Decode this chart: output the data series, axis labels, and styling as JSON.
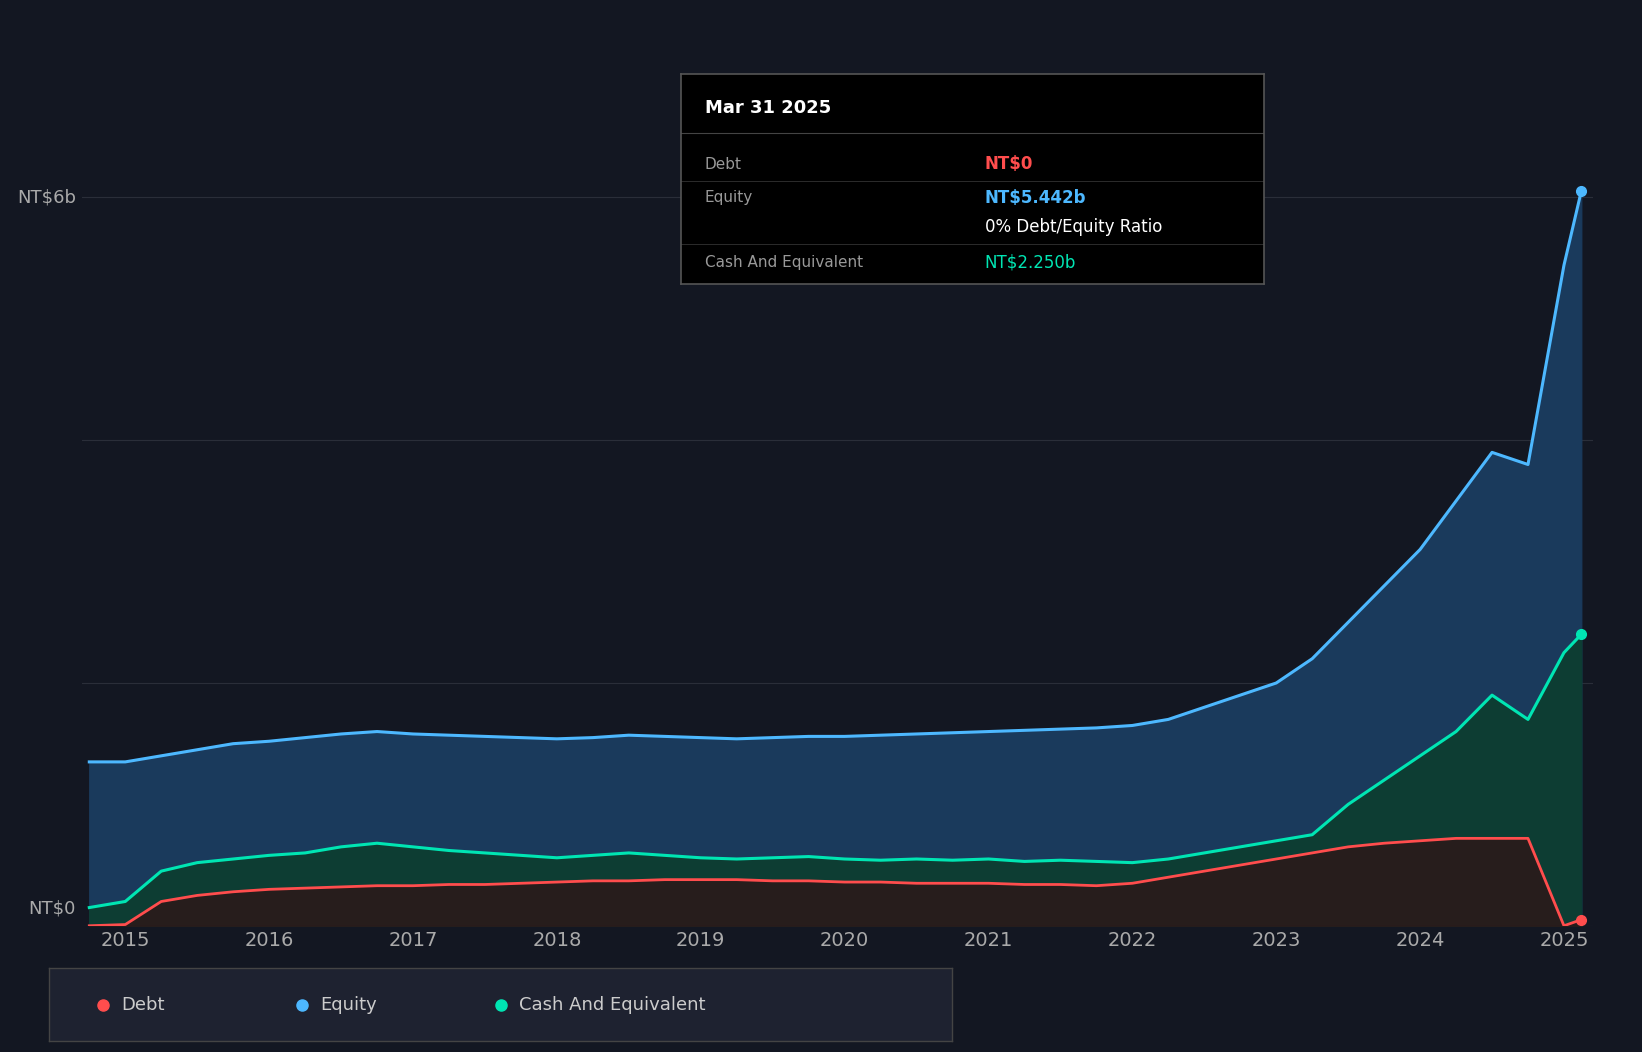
{
  "bg_color": "#131722",
  "plot_bg_color": "#131722",
  "grid_color": "#2a2e39",
  "title_box": {
    "title": "Mar 31 2025",
    "rows": [
      {
        "label": "Debt",
        "value": "NT$0",
        "value_color": "#ff4d4d"
      },
      {
        "label": "Equity",
        "value": "NT$5.442b",
        "value_color": "#4db8ff"
      },
      {
        "label": "",
        "value": "0% Debt/Equity Ratio",
        "value_color": "#ffffff"
      },
      {
        "label": "Cash And Equivalent",
        "value": "NT$2.250b",
        "value_color": "#00e5b3"
      }
    ],
    "bg_color": "#000000",
    "border_color": "#555555"
  },
  "ylabel_nt6b": "NT$6b",
  "ylabel_nt0": "NT$0",
  "ylim": [
    0,
    6500000000.0
  ],
  "yticks": [
    0,
    2000000000.0,
    4000000000.0,
    6000000000.0
  ],
  "colors": {
    "debt": "#ff4d4d",
    "equity": "#4db8ff",
    "cash": "#00e5b3"
  },
  "fill_colors": {
    "equity": "#1a3a5c",
    "cash": "#0d3d33",
    "debt": "#2a1a1a"
  },
  "legend": [
    {
      "label": "Debt",
      "color": "#ff4d4d"
    },
    {
      "label": "Equity",
      "color": "#4db8ff"
    },
    {
      "label": "Cash And Equivalent",
      "color": "#00e5b3"
    }
  ],
  "time_points": [
    2014.75,
    2015.0,
    2015.25,
    2015.5,
    2015.75,
    2016.0,
    2016.25,
    2016.5,
    2016.75,
    2017.0,
    2017.25,
    2017.5,
    2017.75,
    2018.0,
    2018.25,
    2018.5,
    2018.75,
    2019.0,
    2019.25,
    2019.5,
    2019.75,
    2020.0,
    2020.25,
    2020.5,
    2020.75,
    2021.0,
    2021.25,
    2021.5,
    2021.75,
    2022.0,
    2022.25,
    2022.5,
    2022.75,
    2023.0,
    2023.25,
    2023.5,
    2023.75,
    2024.0,
    2024.25,
    2024.5,
    2024.75,
    2025.0,
    2025.12
  ],
  "equity": [
    1350000000.0,
    1350000000.0,
    1400000000.0,
    1450000000.0,
    1500000000.0,
    1520000000.0,
    1550000000.0,
    1580000000.0,
    1600000000.0,
    1580000000.0,
    1570000000.0,
    1560000000.0,
    1550000000.0,
    1540000000.0,
    1550000000.0,
    1570000000.0,
    1560000000.0,
    1550000000.0,
    1540000000.0,
    1550000000.0,
    1560000000.0,
    1560000000.0,
    1570000000.0,
    1580000000.0,
    1590000000.0,
    1600000000.0,
    1610000000.0,
    1620000000.0,
    1630000000.0,
    1650000000.0,
    1700000000.0,
    1800000000.0,
    1900000000.0,
    2000000000.0,
    2200000000.0,
    2500000000.0,
    2800000000.0,
    3100000000.0,
    3500000000.0,
    3900000000.0,
    3800000000.0,
    5442000000.0,
    6050000000.0
  ],
  "debt": [
    0,
    10000000.0,
    200000000.0,
    250000000.0,
    280000000.0,
    300000000.0,
    310000000.0,
    320000000.0,
    330000000.0,
    330000000.0,
    340000000.0,
    340000000.0,
    350000000.0,
    360000000.0,
    370000000.0,
    370000000.0,
    380000000.0,
    380000000.0,
    380000000.0,
    370000000.0,
    370000000.0,
    360000000.0,
    360000000.0,
    350000000.0,
    350000000.0,
    350000000.0,
    340000000.0,
    340000000.0,
    330000000.0,
    350000000.0,
    400000000.0,
    450000000.0,
    500000000.0,
    550000000.0,
    600000000.0,
    650000000.0,
    680000000.0,
    700000000.0,
    720000000.0,
    720000000.0,
    720000000.0,
    0.0,
    50000000.0
  ],
  "cash": [
    150000000.0,
    200000000.0,
    450000000.0,
    520000000.0,
    550000000.0,
    580000000.0,
    600000000.0,
    650000000.0,
    680000000.0,
    650000000.0,
    620000000.0,
    600000000.0,
    580000000.0,
    560000000.0,
    580000000.0,
    600000000.0,
    580000000.0,
    560000000.0,
    550000000.0,
    560000000.0,
    570000000.0,
    550000000.0,
    540000000.0,
    550000000.0,
    540000000.0,
    550000000.0,
    530000000.0,
    540000000.0,
    530000000.0,
    520000000.0,
    550000000.0,
    600000000.0,
    650000000.0,
    700000000.0,
    750000000.0,
    1000000000.0,
    1200000000.0,
    1400000000.0,
    1600000000.0,
    1900000000.0,
    1700000000.0,
    2250000000.0,
    2400000000.0
  ],
  "xticks": [
    2015,
    2016,
    2017,
    2018,
    2019,
    2020,
    2021,
    2022,
    2023,
    2024,
    2025
  ],
  "xlim": [
    2014.7,
    2025.2
  ]
}
